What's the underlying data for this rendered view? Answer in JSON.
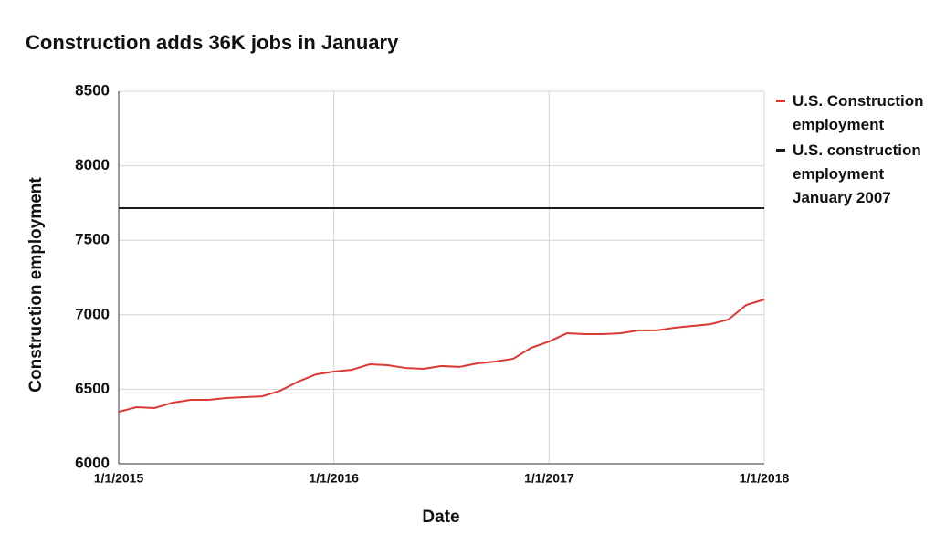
{
  "chart_data": {
    "type": "line",
    "title": "Construction adds 36K jobs in January",
    "x_label": "Date",
    "y_label": "Construction employment",
    "categories": [
      "1/1/2015",
      null,
      null,
      null,
      null,
      null,
      null,
      null,
      null,
      null,
      null,
      null,
      "1/1/2016",
      null,
      null,
      null,
      null,
      null,
      null,
      null,
      null,
      null,
      null,
      null,
      "1/1/2017",
      null,
      null,
      null,
      null,
      null,
      null,
      null,
      null,
      null,
      null,
      null,
      "1/1/2018"
    ],
    "series": [
      {
        "name": "U.S. Construction employment",
        "color": "#db3a34",
        "values": [
          6349,
          6380,
          6374,
          6410,
          6429,
          6429,
          6441,
          6447,
          6453,
          6490,
          6551,
          6600,
          6619,
          6631,
          6668,
          6662,
          6643,
          6637,
          6656,
          6650,
          6674,
          6686,
          6705,
          6778,
          6821,
          6876,
          6870,
          6870,
          6876,
          6895,
          6895,
          6913,
          6925,
          6937,
          6968,
          7066,
          7103
        ]
      },
      {
        "name": "U.S. construction employment January 2007",
        "color": "#1a1a1a",
        "values": [
          7716,
          7716,
          7716,
          7716,
          7716,
          7716,
          7716,
          7716,
          7716,
          7716,
          7716,
          7716,
          7716,
          7716,
          7716,
          7716,
          7716,
          7716,
          7716,
          7716,
          7716,
          7716,
          7716,
          7716,
          7716,
          7716,
          7716,
          7716,
          7716,
          7716,
          7716,
          7716,
          7716,
          7716,
          7716,
          7716,
          7716
        ]
      }
    ],
    "ylim": [
      6000,
      8500
    ],
    "yticks": [
      6000,
      6500,
      7000,
      7500,
      8000,
      8500
    ],
    "grid": true,
    "legend": "right"
  }
}
